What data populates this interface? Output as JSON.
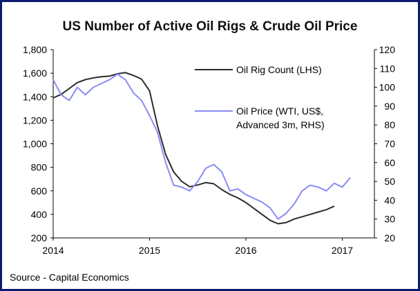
{
  "chart_data": {
    "type": "line",
    "title": "US Number of Active Oil Rigs & Crude Oil Price",
    "source": "Source - Capital Economics",
    "x_ticks": [
      "2014",
      "2015",
      "2016",
      "2017"
    ],
    "xlim": [
      "2014-01",
      "2017-05"
    ],
    "y_left": {
      "ylim": [
        200,
        1800
      ],
      "ticks": [
        "200",
        "400",
        "600",
        "800",
        "1,000",
        "1,200",
        "1,400",
        "1,600",
        "1,800"
      ]
    },
    "y_right": {
      "ylim": [
        20,
        120
      ],
      "ticks": [
        "20",
        "30",
        "40",
        "50",
        "60",
        "70",
        "80",
        "90",
        "100",
        "110",
        "120"
      ]
    },
    "legend_position": "upper-right",
    "grid": false,
    "series": [
      {
        "name": "Oil Rig Count (LHS)",
        "axis": "left",
        "color": "#2b2b2b",
        "points": [
          [
            "2014-01",
            1390
          ],
          [
            "2014-02",
            1420
          ],
          [
            "2014-03",
            1470
          ],
          [
            "2014-04",
            1520
          ],
          [
            "2014-05",
            1545
          ],
          [
            "2014-06",
            1560
          ],
          [
            "2014-07",
            1570
          ],
          [
            "2014-08",
            1575
          ],
          [
            "2014-09",
            1595
          ],
          [
            "2014-10",
            1605
          ],
          [
            "2014-11",
            1580
          ],
          [
            "2014-12",
            1550
          ],
          [
            "2015-01",
            1450
          ],
          [
            "2015-02",
            1150
          ],
          [
            "2015-03",
            910
          ],
          [
            "2015-04",
            760
          ],
          [
            "2015-05",
            680
          ],
          [
            "2015-06",
            635
          ],
          [
            "2015-07",
            650
          ],
          [
            "2015-08",
            670
          ],
          [
            "2015-09",
            660
          ],
          [
            "2015-10",
            610
          ],
          [
            "2015-11",
            570
          ],
          [
            "2015-12",
            540
          ],
          [
            "2016-01",
            500
          ],
          [
            "2016-02",
            450
          ],
          [
            "2016-03",
            400
          ],
          [
            "2016-04",
            350
          ],
          [
            "2016-05",
            320
          ],
          [
            "2016-06",
            330
          ],
          [
            "2016-07",
            360
          ],
          [
            "2016-08",
            380
          ],
          [
            "2016-09",
            400
          ],
          [
            "2016-10",
            420
          ],
          [
            "2016-11",
            440
          ],
          [
            "2016-12",
            470
          ]
        ]
      },
      {
        "name": "Oil Price (WTI, US$, Advanced 3m, RHS)",
        "axis": "right",
        "color": "#8a8cf2",
        "points": [
          [
            "2014-01",
            104
          ],
          [
            "2014-02",
            96
          ],
          [
            "2014-03",
            93
          ],
          [
            "2014-04",
            100
          ],
          [
            "2014-05",
            96
          ],
          [
            "2014-06",
            100
          ],
          [
            "2014-07",
            102
          ],
          [
            "2014-08",
            104
          ],
          [
            "2014-09",
            107
          ],
          [
            "2014-10",
            104
          ],
          [
            "2014-11",
            97
          ],
          [
            "2014-12",
            93
          ],
          [
            "2015-01",
            85
          ],
          [
            "2015-02",
            76
          ],
          [
            "2015-03",
            60
          ],
          [
            "2015-04",
            48
          ],
          [
            "2015-05",
            47
          ],
          [
            "2015-06",
            45
          ],
          [
            "2015-07",
            50
          ],
          [
            "2015-08",
            57
          ],
          [
            "2015-09",
            59
          ],
          [
            "2015-10",
            55
          ],
          [
            "2015-11",
            45
          ],
          [
            "2015-12",
            46
          ],
          [
            "2016-01",
            43
          ],
          [
            "2016-02",
            41
          ],
          [
            "2016-03",
            39
          ],
          [
            "2016-04",
            36
          ],
          [
            "2016-05",
            30
          ],
          [
            "2016-06",
            33
          ],
          [
            "2016-07",
            38
          ],
          [
            "2016-08",
            45
          ],
          [
            "2016-09",
            48
          ],
          [
            "2016-10",
            47
          ],
          [
            "2016-11",
            45
          ],
          [
            "2016-12",
            49
          ],
          [
            "2017-01",
            47
          ],
          [
            "2017-02",
            52
          ]
        ]
      }
    ]
  }
}
